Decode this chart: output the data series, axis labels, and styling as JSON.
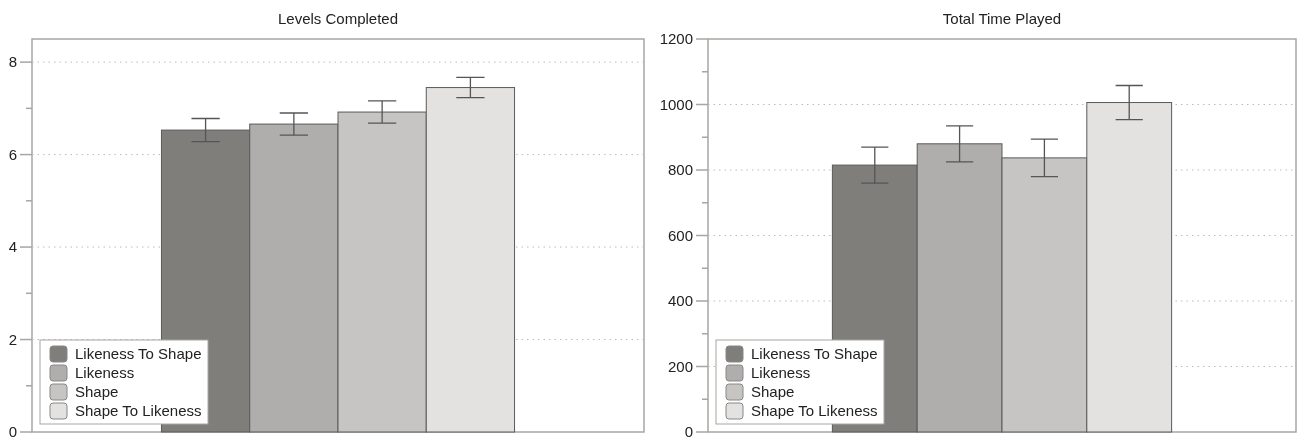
{
  "chart_data": [
    {
      "type": "bar",
      "title": "Levels Completed",
      "categories": [
        null
      ],
      "ylim": [
        0,
        8.5
      ],
      "yticks": [
        0,
        {
          "value": 1,
          "label": null
        },
        2,
        {
          "value": 3,
          "label": null
        },
        4,
        {
          "value": 5,
          "label": null
        },
        6,
        {
          "value": 7,
          "label": null
        },
        8
      ],
      "grid": "y",
      "legend": "bottom left",
      "series": [
        {
          "name": "Likeness To Shape",
          "color": "#7f7e7b",
          "values": [
            6.53
          ],
          "errors": [
            0.25
          ]
        },
        {
          "name": "Likeness",
          "color": "#afaeac",
          "values": [
            6.66
          ],
          "errors": [
            0.24
          ]
        },
        {
          "name": "Shape",
          "color": "#c6c5c3",
          "values": [
            6.92
          ],
          "errors": [
            0.24
          ]
        },
        {
          "name": "Shape To Likeness",
          "color": "#e3e2e1",
          "values": [
            7.45
          ],
          "errors": [
            0.22
          ]
        }
      ]
    },
    {
      "type": "bar",
      "title": "Total Time Played",
      "categories": [
        null
      ],
      "ylim": [
        0,
        1200
      ],
      "yticks": [
        0,
        {
          "value": 100,
          "label": null
        },
        200,
        {
          "value": 300,
          "label": null
        },
        400,
        {
          "value": 500,
          "label": null
        },
        600,
        {
          "value": 700,
          "label": null
        },
        800,
        {
          "value": 900,
          "label": null
        },
        1000,
        {
          "value": 1100,
          "label": null
        },
        1200
      ],
      "grid": "y",
      "legend": "bottom left",
      "series": [
        {
          "name": "Likeness To Shape",
          "color": "#7f7e7b",
          "values": [
            815
          ],
          "errors": [
            55
          ]
        },
        {
          "name": "Likeness",
          "color": "#afaeac",
          "values": [
            880
          ],
          "errors": [
            55
          ]
        },
        {
          "name": "Shape",
          "color": "#c6c5c3",
          "values": [
            837
          ],
          "errors": [
            57
          ]
        },
        {
          "name": "Shape To Likeness",
          "color": "#e3e2e1",
          "values": [
            1006
          ],
          "errors": [
            52
          ]
        }
      ]
    }
  ]
}
